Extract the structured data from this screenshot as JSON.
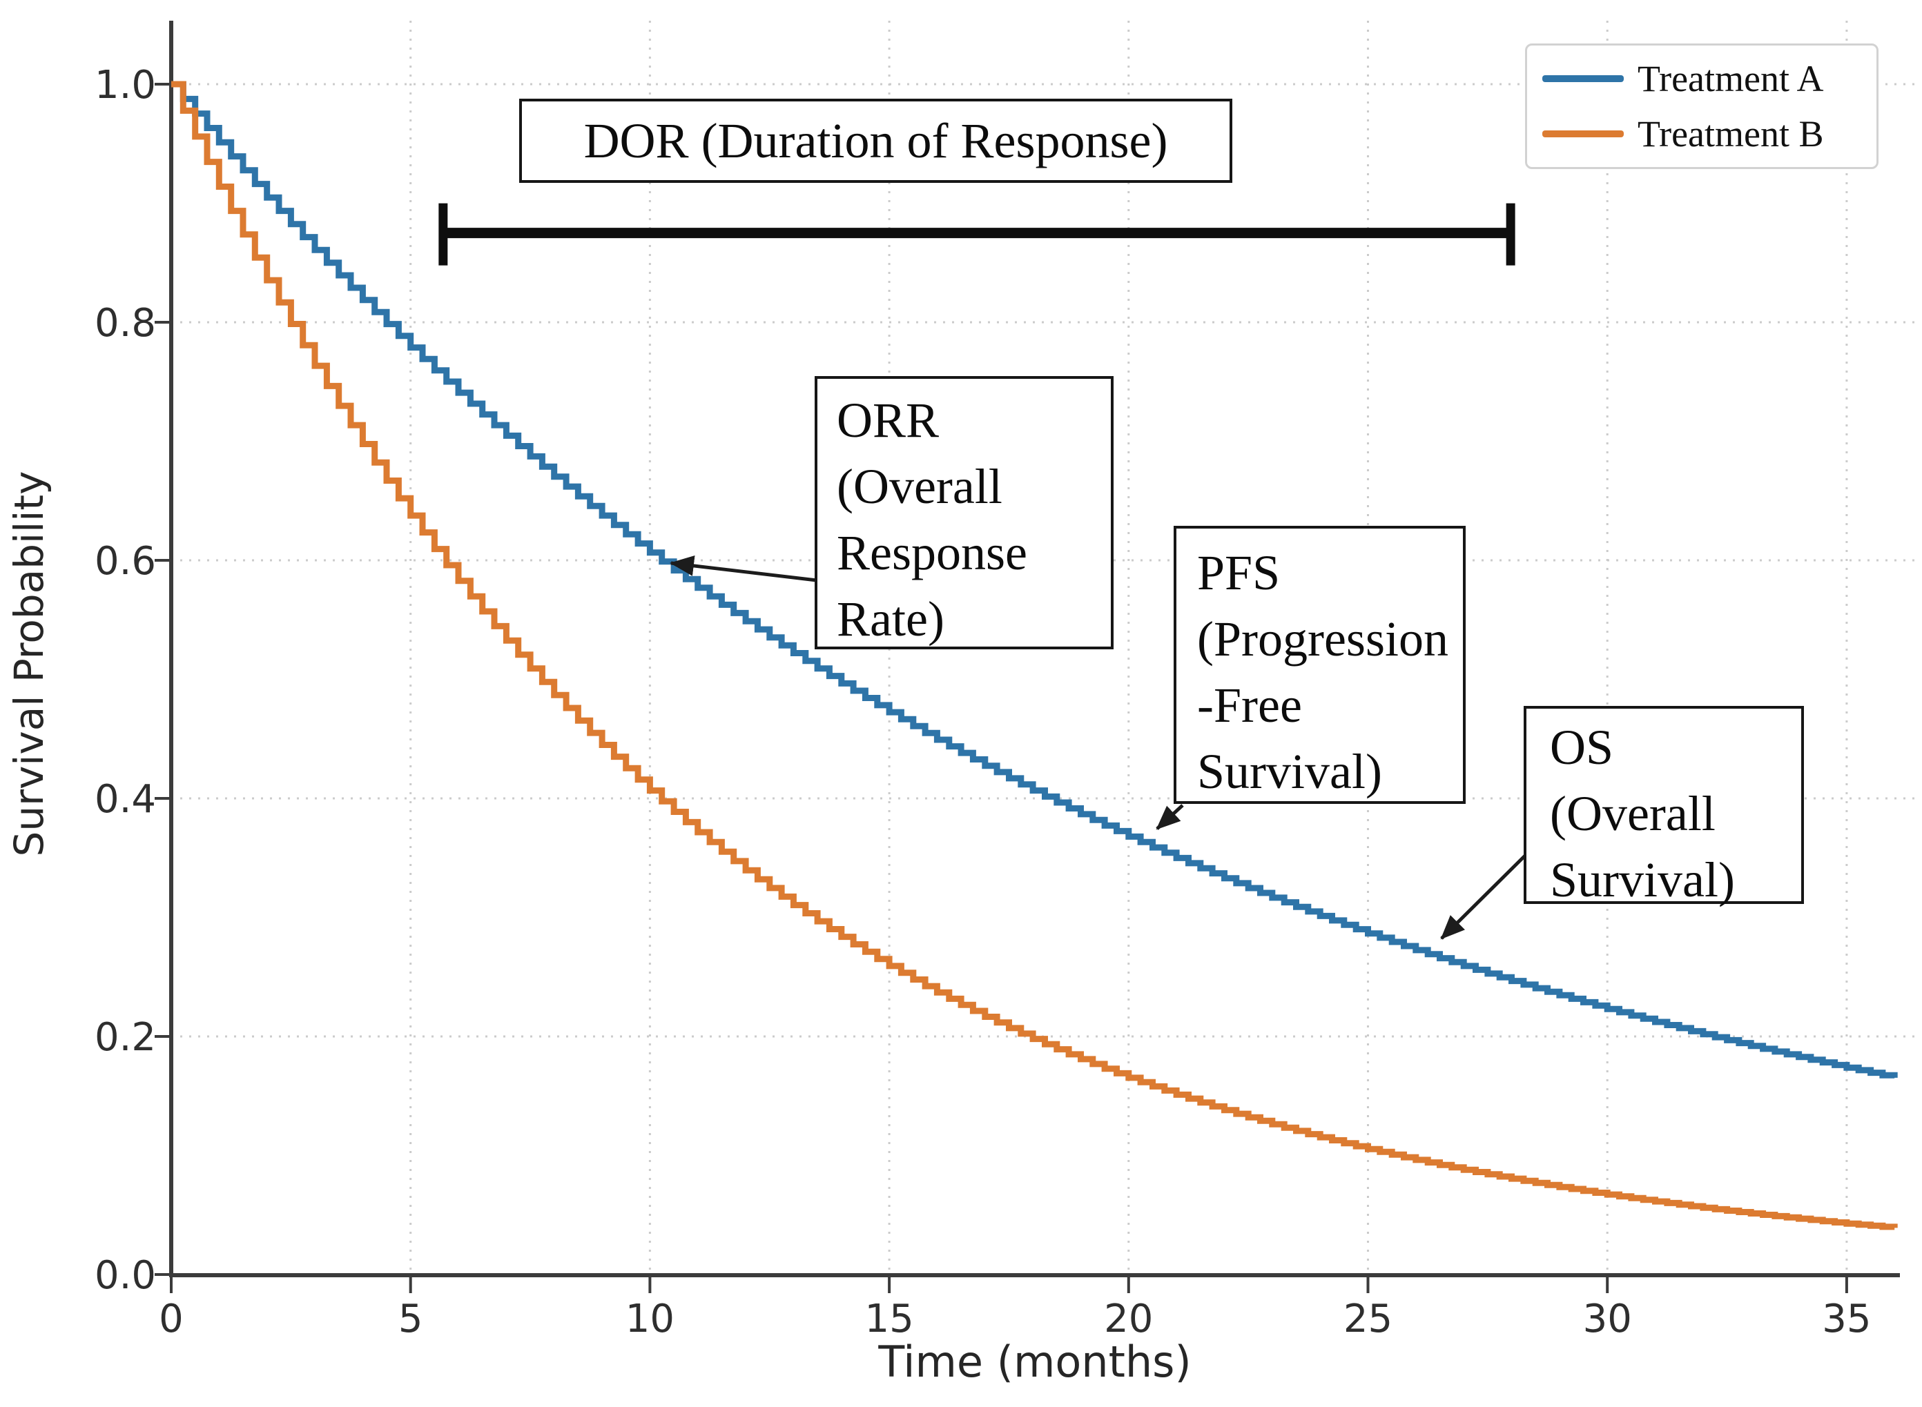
{
  "figure": {
    "background": "#ffffff",
    "accent_black": "#161616",
    "axis_color": "#3b3b3b",
    "grid_color": "#cbcbcb"
  },
  "axes": {
    "x": {
      "label": "Time (months)",
      "ticks": [
        "0",
        "5",
        "10",
        "15",
        "20",
        "25",
        "30",
        "35"
      ],
      "range": [
        0,
        36
      ]
    },
    "y": {
      "label": "Survival Probability",
      "ticks": [
        "1.0",
        "0.8",
        "0.6",
        "0.4",
        "0.2",
        "0.0"
      ],
      "range": [
        0.0,
        1.0
      ]
    }
  },
  "legend": {
    "items": [
      {
        "label": "Treatment A",
        "color": "#2e74a8"
      },
      {
        "label": "Treatment B",
        "color": "#dc7b31"
      }
    ]
  },
  "annotations": {
    "dor": {
      "text": "DOR (Duration of Response)",
      "bracket": {
        "start_months": 5.68,
        "end_months": 27.98,
        "y_value": 0.875
      }
    },
    "orr": {
      "lines": [
        "ORR",
        "(Overall",
        "Response",
        "Rate)"
      ]
    },
    "pfs": {
      "lines": [
        "PFS",
        "(Progression",
        "-Free",
        "Survival)"
      ]
    },
    "os": {
      "lines": [
        "OS",
        "(Overall",
        "Survival)"
      ]
    }
  },
  "chart_data": {
    "type": "line",
    "subtype": "kaplan-meier-step",
    "title": "",
    "xlabel": "Time (months)",
    "ylabel": "Survival Probability",
    "xlim": [
      0,
      36.5
    ],
    "ylim": [
      0,
      1.05
    ],
    "grid": true,
    "grid_style": "dotted",
    "legend_position": "upper right",
    "step_substeps_per_month": 4,
    "x_months": [
      0,
      1,
      2,
      3,
      4,
      5,
      6,
      7,
      8,
      9,
      10,
      11,
      12,
      13,
      14,
      15,
      16,
      17,
      18,
      19,
      20,
      21,
      22,
      23,
      24,
      25,
      26,
      27,
      28,
      29,
      30,
      31,
      32,
      33,
      34,
      35,
      36
    ],
    "series": [
      {
        "name": "Treatment A",
        "color": "#2e74a8",
        "model": "exponential",
        "decay_rate_per_month": 0.05,
        "values": [
          1.0,
          0.9512,
          0.9048,
          0.8607,
          0.8187,
          0.7788,
          0.7408,
          0.7047,
          0.6703,
          0.6376,
          0.6065,
          0.5769,
          0.5488,
          0.522,
          0.4966,
          0.4724,
          0.4493,
          0.4274,
          0.4066,
          0.3867,
          0.3679,
          0.3499,
          0.3329,
          0.3166,
          0.3012,
          0.2865,
          0.2725,
          0.2592,
          0.2466,
          0.2346,
          0.2231,
          0.2122,
          0.2019,
          0.192,
          0.1827,
          0.1738,
          0.1653
        ]
      },
      {
        "name": "Treatment B",
        "color": "#dc7b31",
        "model": "exponential",
        "decay_rate_per_month": 0.09,
        "values": [
          1.0,
          0.9139,
          0.8353,
          0.7634,
          0.6977,
          0.6376,
          0.5827,
          0.5326,
          0.4868,
          0.4449,
          0.4066,
          0.3716,
          0.3396,
          0.3104,
          0.2837,
          0.2592,
          0.2369,
          0.2165,
          0.1979,
          0.1809,
          0.1653,
          0.1511,
          0.1381,
          0.1262,
          0.1153,
          0.1054,
          0.0963,
          0.088,
          0.0805,
          0.0735,
          0.0672,
          0.0614,
          0.0561,
          0.0513,
          0.0469,
          0.0428,
          0.0392
        ]
      }
    ]
  }
}
